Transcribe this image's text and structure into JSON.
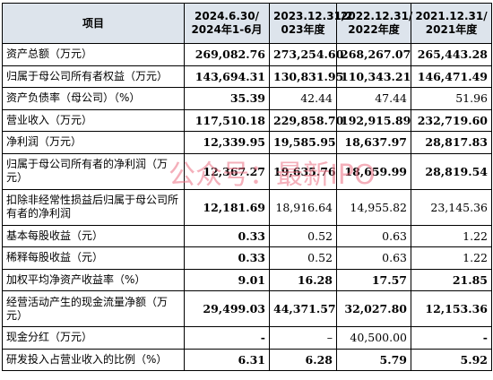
{
  "table": {
    "header": [
      "项目",
      "2024.6.30/\n2024年1-6月",
      "2023.12.31/2\n023年度",
      "2022.12.31/\n2022年度",
      "2021.12.31/\n2021年度"
    ],
    "rows": [
      {
        "label": "资产总额（万元）",
        "values": [
          "269,082.76",
          "273,254.60",
          "268,267.07",
          "265,443.28"
        ]
      },
      {
        "label": "归属于母公司所有者权益（万元）",
        "values": [
          "143,694.31",
          "130,831.95",
          "110,343.21",
          "146,471.49"
        ]
      },
      {
        "label": "资产负债率（母公司）（%）",
        "values": [
          "35.39",
          "42.44",
          "47.44",
          "51.96"
        ]
      },
      {
        "label": "营业收入（万元）",
        "values": [
          "117,510.18",
          "229,858.70",
          "192,915.89",
          "232,719.60"
        ]
      },
      {
        "label": "净利润（万元）",
        "values": [
          "12,339.95",
          "19,585.95",
          "18,637.97",
          "28,817.83"
        ]
      },
      {
        "label": "归属于母公司所有者的净利润（万元）",
        "values": [
          "12,367.27",
          "19,635.76",
          "18,659.99",
          "28,819.54"
        ]
      },
      {
        "label": "扣除非经常性损益后归属于母公司所有者的净利润",
        "values": [
          "12,181.69",
          "18,916.64",
          "14,955.82",
          "23,145.36"
        ]
      },
      {
        "label": "基本每股收益（元）",
        "values": [
          "0.33",
          "0.52",
          "0.63",
          "1.22"
        ]
      },
      {
        "label": "稀释每股收益（元）",
        "values": [
          "0.33",
          "0.52",
          "0.63",
          "1.22"
        ]
      },
      {
        "label": "加权平均净资产收益率（%）",
        "values": [
          "9.01",
          "16.28",
          "17.57",
          "21.85"
        ]
      },
      {
        "label": "经营活动产生的现金流量净额（万元）",
        "values": [
          "29,499.03",
          "44,371.57",
          "32,027.80",
          "12,153.36"
        ]
      },
      {
        "label": "现金分红（万元）",
        "values": [
          "-",
          "–",
          "40,500.00",
          "-"
        ]
      },
      {
        "label": "研发投入占营业收入的比例（%）",
        "values": [
          "6.31",
          "6.28",
          "5.79",
          "5.92"
        ]
      }
    ]
  },
  "watermark": "公众号：最新IPO"
}
